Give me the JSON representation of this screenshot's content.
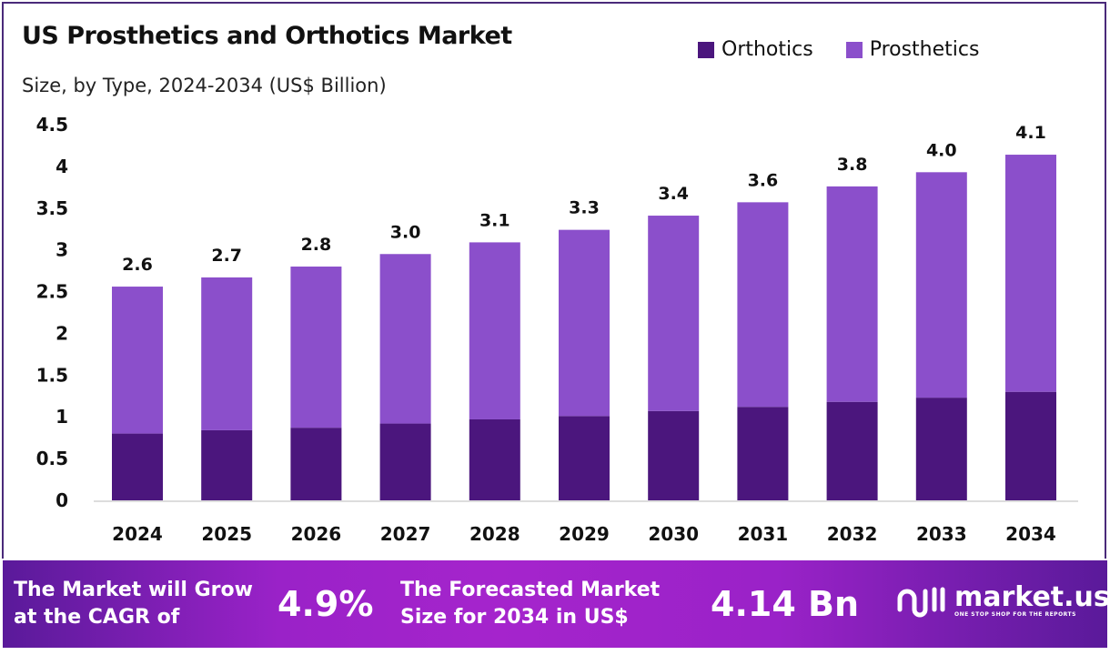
{
  "header": {
    "title": "US Prosthetics and Orthotics Market",
    "subtitle": "Size, by Type, 2024-2034 (US$ Billion)"
  },
  "chart_data": {
    "type": "bar",
    "stacked": true,
    "title": "US Prosthetics and Orthotics Market",
    "subtitle": "Size, by Type, 2024-2034 (US$ Billion)",
    "xlabel": "",
    "ylabel": "",
    "ylim": [
      0,
      4.5
    ],
    "yticks": [
      "0",
      "0.5",
      "1",
      "1.5",
      "2",
      "2.5",
      "3",
      "3.5",
      "4",
      "4.5"
    ],
    "categories": [
      "2024",
      "2025",
      "2026",
      "2027",
      "2028",
      "2029",
      "2030",
      "2031",
      "2032",
      "2033",
      "2034"
    ],
    "series": [
      {
        "name": "Orthotics",
        "color": "#4b167d",
        "values": [
          0.8,
          0.84,
          0.87,
          0.92,
          0.97,
          1.01,
          1.07,
          1.12,
          1.18,
          1.23,
          1.3
        ]
      },
      {
        "name": "Prosthetics",
        "color": "#8b4fcb",
        "values": [
          1.76,
          1.83,
          1.93,
          2.03,
          2.12,
          2.23,
          2.34,
          2.45,
          2.58,
          2.7,
          2.84
        ]
      }
    ],
    "total_labels": [
      "2.6",
      "2.7",
      "2.8",
      "3.0",
      "3.1",
      "3.3",
      "3.4",
      "3.6",
      "3.8",
      "4.0",
      "4.1"
    ],
    "legend_position": "top-right",
    "grid": false
  },
  "footer": {
    "cagr_text_1": "The Market will Grow",
    "cagr_text_2": "at the CAGR of",
    "cagr_value": "4.9%",
    "forecast_text_1": "The Forecasted Market",
    "forecast_text_2": "Size for 2034 in US$",
    "forecast_value": "4.14 Bn",
    "logo_name": "market.us",
    "logo_tagline": "ONE STOP SHOP FOR THE REPORTS"
  }
}
